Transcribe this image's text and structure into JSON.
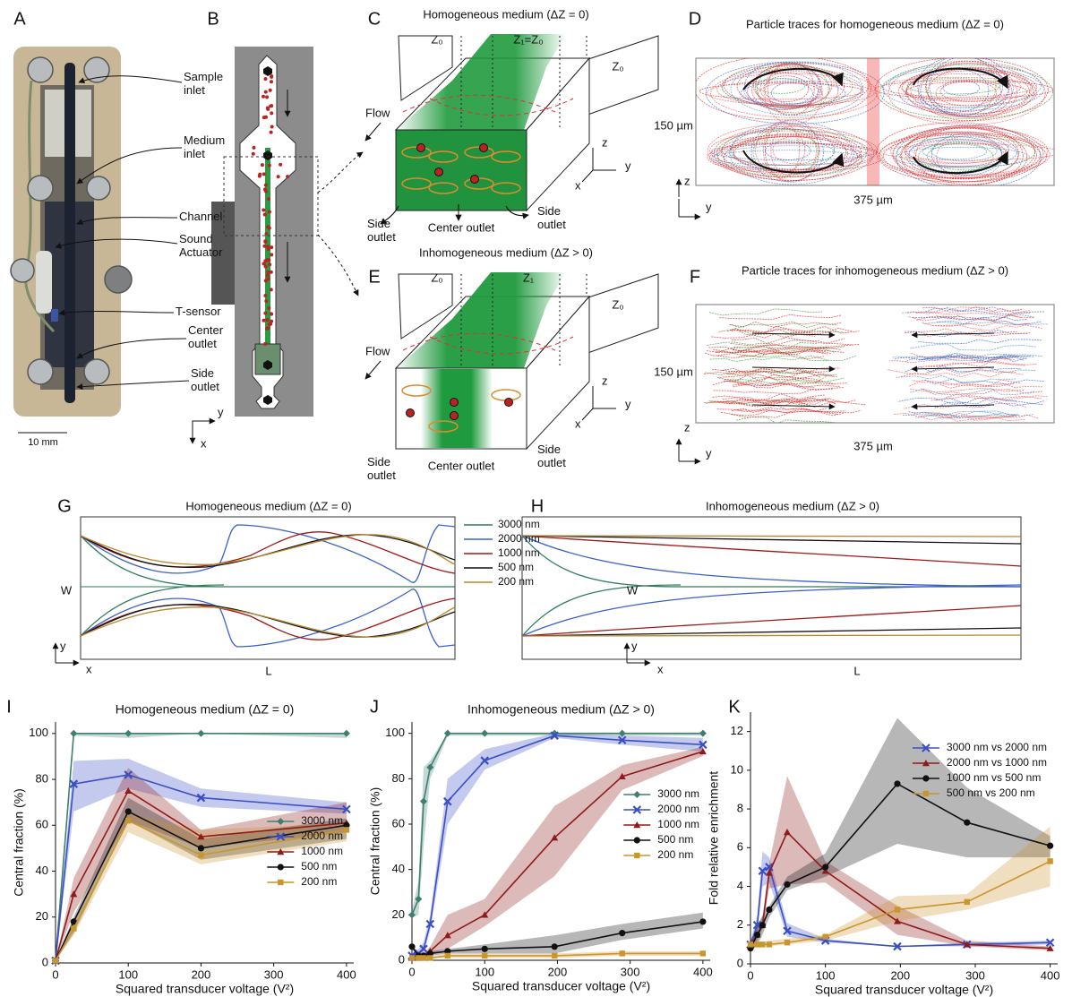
{
  "panel_labels": [
    "A",
    "B",
    "C",
    "D",
    "E",
    "F",
    "G",
    "H",
    "I",
    "J",
    "K"
  ],
  "panel_a": {
    "callouts": [
      [
        "Sample",
        "inlet"
      ],
      [
        "Medium",
        "inlet"
      ],
      [
        "Channel"
      ],
      [
        "Sound",
        "Actuator"
      ],
      [
        "T-sensor"
      ],
      [
        "Center",
        "outlet"
      ],
      [
        "Side",
        "outlet"
      ]
    ],
    "scale_bar": "10 mm"
  },
  "panel_b": {
    "axes": [
      "y",
      "x"
    ]
  },
  "panel_c": {
    "title": "Homogeneous medium (ΔZ = 0)",
    "z_labels": [
      "Z₀",
      "Z₁=Z₀",
      "Z₀"
    ],
    "flow": "Flow",
    "side_outlet_left": [
      "Side",
      "outlet"
    ],
    "center_outlet": "Center outlet",
    "side_outlet_right": [
      "Side",
      "outlet"
    ],
    "axes": [
      "z",
      "y",
      "x"
    ]
  },
  "panel_d": {
    "title": "Particle traces for homogeneous medium (ΔZ = 0)",
    "height": "150 µm",
    "width": "375 µm",
    "axes": [
      "z",
      "y"
    ]
  },
  "panel_e": {
    "title": "Inhomogeneous medium (ΔZ > 0)",
    "z_labels": [
      "Z₀",
      "Z₁",
      "Z₀"
    ],
    "flow": "Flow",
    "side_outlet_left": [
      "Side",
      "outlet"
    ],
    "center_outlet": "Center outlet",
    "side_outlet_right": [
      "Side",
      "outlet"
    ],
    "axes": [
      "z",
      "y",
      "x"
    ]
  },
  "panel_f": {
    "title": "Particle traces for inhomogeneous medium (ΔZ > 0)",
    "height": "150 µm",
    "width": "375 µm",
    "axes": [
      "z",
      "y"
    ]
  },
  "panel_g": {
    "title": "Homogeneous medium (ΔZ = 0)",
    "legend": [
      "3000 nm",
      "2000 nm",
      "1000 nm",
      "500 nm",
      "200 nm"
    ],
    "colors": [
      "#2e7d5b",
      "#3a5fcd",
      "#a01818",
      "#111111",
      "#b8862b"
    ],
    "w": "W",
    "l": "L",
    "axes": [
      "y",
      "x"
    ]
  },
  "panel_h": {
    "title": "Inhomogeneous medium (ΔZ > 0)",
    "w": "W",
    "l": "L",
    "axes": [
      "y",
      "x"
    ]
  },
  "chart_data": [
    {
      "type": "line",
      "title": "Homogeneous medium (ΔZ = 0)",
      "xlabel": "Squared transducer voltage (V²)",
      "ylabel": "Central fraction (%)",
      "x": [
        0,
        25,
        100,
        200,
        400
      ],
      "xlim": [
        0,
        410
      ],
      "ylim": [
        0,
        105
      ],
      "xticks": [
        0,
        100,
        200,
        300,
        400
      ],
      "yticks": [
        0,
        20,
        40,
        60,
        80,
        100
      ],
      "legend": "lower right",
      "series": [
        {
          "name": "3000 nm",
          "color": "#3f7f6f",
          "marker": "diamond",
          "values": [
            1,
            100,
            100,
            100,
            100
          ],
          "low": [
            1,
            99,
            98,
            100,
            98
          ],
          "high": [
            1,
            100,
            100,
            100,
            100
          ]
        },
        {
          "name": "2000 nm",
          "color": "#3b4fc4",
          "marker": "x",
          "values": [
            1,
            78,
            82,
            72,
            67
          ],
          "low": [
            1,
            66,
            76,
            68,
            65
          ],
          "high": [
            1,
            88,
            89,
            76,
            70
          ]
        },
        {
          "name": "1000 nm",
          "color": "#8e1b1b",
          "marker": "triangle",
          "values": [
            1,
            30,
            75,
            55,
            61
          ],
          "low": [
            1,
            22,
            62,
            50,
            57
          ],
          "high": [
            1,
            37,
            85,
            58,
            70
          ]
        },
        {
          "name": "500 nm",
          "color": "#111111",
          "marker": "circle",
          "values": [
            1,
            18,
            66,
            50,
            60
          ],
          "low": [
            1,
            13,
            62,
            45,
            54
          ],
          "high": [
            1,
            20,
            72,
            54,
            63
          ]
        },
        {
          "name": "200 nm",
          "color": "#c9962e",
          "marker": "square",
          "values": [
            1,
            15,
            62,
            47,
            58
          ],
          "low": [
            1,
            12,
            57,
            43,
            53
          ],
          "high": [
            1,
            18,
            65,
            58,
            61
          ]
        }
      ]
    },
    {
      "type": "line",
      "title": "Inhomogeneous medium (ΔZ > 0)",
      "xlabel": "Squared transducer voltage (V²)",
      "ylabel": "Central fraction (%)",
      "x": [
        0,
        9,
        16,
        25,
        49,
        100,
        196,
        289,
        400
      ],
      "xlim": [
        0,
        410
      ],
      "ylim": [
        0,
        105
      ],
      "xticks": [
        0,
        100,
        200,
        300,
        400
      ],
      "yticks": [
        0,
        20,
        40,
        60,
        80,
        100
      ],
      "legend": "center right",
      "series": [
        {
          "name": "3000 nm",
          "color": "#3f7f6f",
          "marker": "diamond",
          "values": [
            20,
            27,
            70,
            85,
            100,
            100,
            100,
            100,
            100
          ],
          "low": [
            19,
            20,
            50,
            80,
            99,
            99,
            99,
            99,
            99
          ],
          "high": [
            22,
            35,
            85,
            88,
            100,
            100,
            100,
            100,
            100
          ]
        },
        {
          "name": "2000 nm",
          "color": "#3b4fc4",
          "marker": "x",
          "values": [
            2,
            3,
            5,
            16,
            70,
            88,
            99,
            97,
            95
          ],
          "low": [
            1,
            2,
            3,
            13,
            60,
            84,
            98,
            95,
            92
          ],
          "high": [
            3,
            5,
            8,
            20,
            80,
            93,
            100,
            99,
            98
          ]
        },
        {
          "name": "1000 nm",
          "color": "#8e1b1b",
          "marker": "triangle",
          "values": [
            1,
            1,
            2,
            4,
            11,
            20,
            54,
            81,
            92
          ],
          "low": [
            1,
            1,
            1,
            3,
            5,
            15,
            37,
            75,
            90
          ],
          "high": [
            2,
            2,
            3,
            6,
            20,
            27,
            68,
            86,
            94
          ]
        },
        {
          "name": "500 nm",
          "color": "#111111",
          "marker": "circle",
          "values": [
            6,
            2,
            2,
            3,
            4,
            5,
            6,
            12,
            17
          ],
          "low": [
            5,
            1,
            1,
            2,
            3,
            3,
            3,
            9,
            14
          ],
          "high": [
            7,
            3,
            3,
            4,
            5,
            7,
            11,
            16,
            21
          ]
        },
        {
          "name": "200 nm",
          "color": "#c9962e",
          "marker": "square",
          "values": [
            1,
            1,
            1,
            1,
            2,
            2,
            2,
            3,
            3
          ],
          "low": [
            0,
            0,
            0,
            1,
            1,
            1,
            1,
            2,
            2
          ],
          "high": [
            2,
            2,
            2,
            2,
            3,
            3,
            3,
            4,
            4
          ]
        }
      ]
    },
    {
      "type": "line",
      "xlabel": "Squared transducer voltage (V²)",
      "ylabel": "Fold relative enrichment",
      "x": [
        0,
        9,
        16,
        25,
        49,
        100,
        196,
        289,
        400
      ],
      "xlim": [
        0,
        410
      ],
      "ylim": [
        0,
        13
      ],
      "xticks": [
        0,
        100,
        200,
        300,
        400
      ],
      "yticks": [
        0,
        2,
        4,
        6,
        8,
        10,
        12
      ],
      "legend": "upper right",
      "series": [
        {
          "name": "3000 nm vs 2000 nm",
          "color": "#3b4fc4",
          "marker": "x",
          "values": [
            1,
            2,
            4.8,
            5,
            1.7,
            1.2,
            0.9,
            1,
            1.1
          ],
          "low": [
            0.8,
            1.5,
            4,
            4.2,
            1.4,
            1.1,
            0.9,
            0.9,
            1
          ],
          "high": [
            1.2,
            2.5,
            5.8,
            5.5,
            2.1,
            1.3,
            0.9,
            1.1,
            1.2
          ]
        },
        {
          "name": "2000 nm vs 1000 nm",
          "color": "#8e1b1b",
          "marker": "triangle",
          "values": [
            1,
            1.5,
            2,
            4.7,
            6.8,
            4.8,
            2.2,
            1,
            0.8
          ],
          "low": [
            0.8,
            1.2,
            1.8,
            3.9,
            4.1,
            4.2,
            1.5,
            0.9,
            0.7
          ],
          "high": [
            1.2,
            1.9,
            2.4,
            5.2,
            9.7,
            5.3,
            3,
            1.2,
            0.9
          ]
        },
        {
          "name": "1000 nm vs 500 nm",
          "color": "#111111",
          "marker": "circle",
          "values": [
            0.8,
            1.5,
            2,
            2.8,
            4.1,
            5,
            9.3,
            7.3,
            6.1
          ],
          "low": [
            0.7,
            1,
            1.5,
            2.4,
            3.8,
            4.5,
            6.2,
            5.5,
            5.5
          ],
          "high": [
            0.9,
            2,
            2.5,
            3,
            4.5,
            5.7,
            12.7,
            9.1,
            6.6
          ]
        },
        {
          "name": "500 nm vs 200 nm",
          "color": "#c9962e",
          "marker": "square",
          "values": [
            1,
            1,
            1,
            1,
            1.1,
            1.4,
            2.8,
            3.2,
            5.3
          ],
          "low": [
            0.8,
            0.9,
            0.9,
            0.9,
            1,
            1.2,
            2.2,
            2.8,
            4
          ],
          "high": [
            1.2,
            1.1,
            1.1,
            1.2,
            1.3,
            1.5,
            3.5,
            3.6,
            7.1
          ]
        }
      ]
    }
  ]
}
